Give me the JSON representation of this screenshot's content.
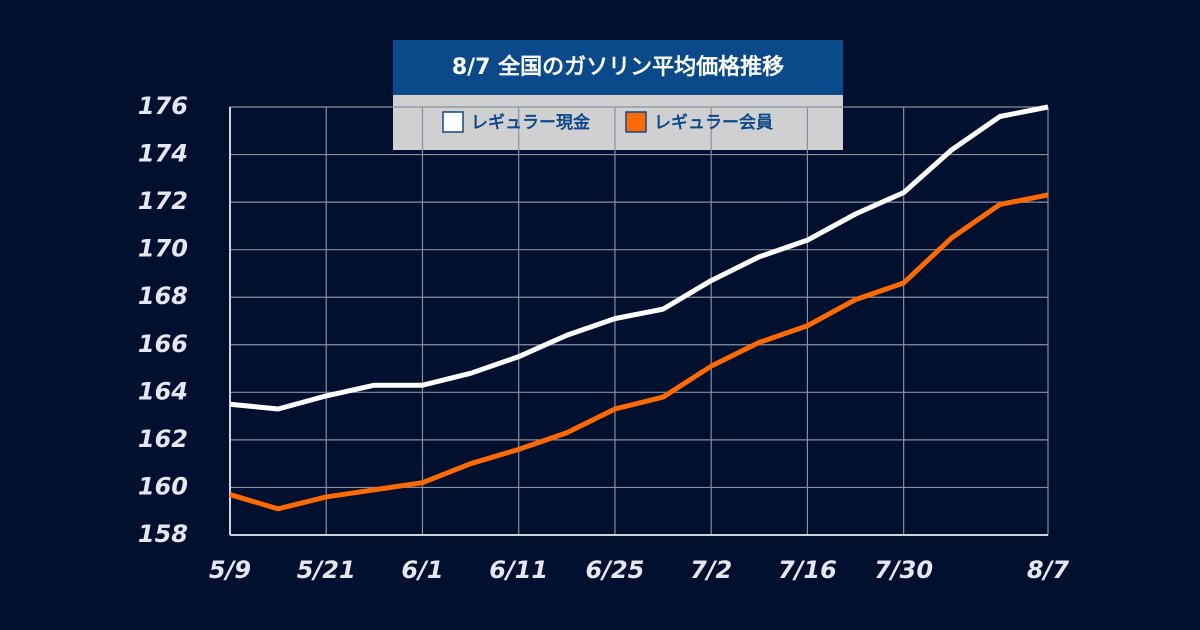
{
  "chart_data": {
    "type": "line",
    "title": "8/7  全国のガソリン平均価格推移",
    "categories": [
      "5/9",
      null,
      "5/21",
      null,
      "6/1",
      null,
      "6/11",
      null,
      "6/25",
      null,
      "7/2",
      null,
      "7/16",
      null,
      "7/30",
      null,
      null,
      "8/7"
    ],
    "series": [
      {
        "name": "レギュラー現金",
        "color": "#ffffff",
        "values": [
          163.5,
          163.3,
          163.85,
          164.3,
          164.3,
          164.8,
          165.5,
          166.4,
          167.1,
          167.5,
          168.7,
          169.7,
          170.4,
          171.5,
          172.4,
          174.2,
          175.6,
          176.0
        ]
      },
      {
        "name": "レギュラー会員",
        "color": "#ff6a00",
        "values": [
          159.7,
          159.1,
          159.6,
          159.9,
          160.2,
          161.0,
          161.6,
          162.3,
          163.3,
          163.8,
          165.1,
          166.1,
          166.8,
          167.9,
          168.6,
          170.5,
          171.9,
          172.3
        ]
      }
    ],
    "ylim": [
      158,
      176
    ],
    "yticks": [
      158,
      160,
      162,
      164,
      166,
      168,
      170,
      172,
      174,
      176
    ],
    "grid": true
  }
}
